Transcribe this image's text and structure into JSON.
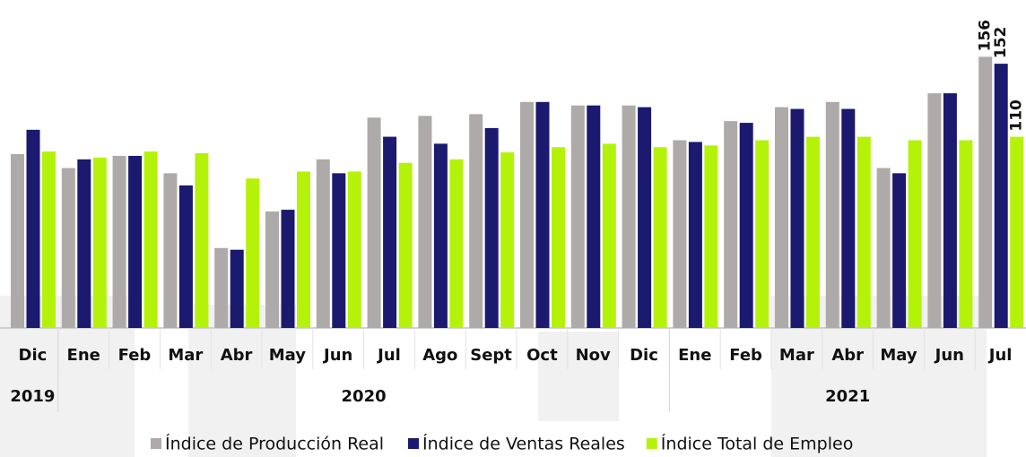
{
  "chart_data": {
    "type": "bar",
    "categories": [
      "Dic",
      "Ene",
      "Feb",
      "Mar",
      "Abr",
      "May",
      "Jun",
      "Jul",
      "Ago",
      "Sept",
      "Oct",
      "Nov",
      "Dic",
      "Ene",
      "Feb",
      "Mar",
      "Abr",
      "May",
      "Jun",
      "Jul"
    ],
    "years": [
      "2019",
      "2020",
      "2020",
      "2020",
      "2020",
      "2020",
      "2020",
      "2020",
      "2020",
      "2020",
      "2020",
      "2020",
      "2020",
      "2021",
      "2021",
      "2021",
      "2021",
      "2021",
      "2021",
      "2021"
    ],
    "series": [
      {
        "name": "Índice de Producción Real",
        "color": "#aeaaaa",
        "values": [
          100,
          92,
          99,
          89,
          46,
          67,
          97,
          121,
          122,
          123,
          130,
          128,
          128,
          108,
          119,
          127,
          130,
          92,
          135,
          156
        ],
        "value_labels": [
          null,
          null,
          null,
          null,
          null,
          null,
          null,
          null,
          null,
          null,
          null,
          null,
          null,
          null,
          null,
          null,
          null,
          null,
          null,
          "156"
        ]
      },
      {
        "name": "Índice de Ventas Reales",
        "color": "#1b1a6e",
        "values": [
          114,
          97,
          99,
          82,
          45,
          68,
          89,
          110,
          106,
          115,
          130,
          128,
          127,
          107,
          118,
          126,
          126,
          89,
          135,
          152
        ],
        "value_labels": [
          null,
          null,
          null,
          null,
          null,
          null,
          null,
          null,
          null,
          null,
          null,
          null,
          null,
          null,
          null,
          null,
          null,
          null,
          null,
          "152"
        ]
      },
      {
        "name": "Índice Total de Empleo",
        "color": "#b5f20a",
        "values": [
          101.5,
          98,
          101.5,
          100.5,
          86,
          90,
          90,
          95,
          97,
          101,
          104,
          106,
          104,
          105,
          108,
          110,
          110,
          108,
          108,
          110
        ],
        "value_labels": [
          null,
          null,
          null,
          null,
          null,
          null,
          null,
          null,
          null,
          null,
          null,
          null,
          null,
          null,
          null,
          null,
          null,
          null,
          null,
          "110"
        ]
      }
    ],
    "legend": "bottom"
  }
}
